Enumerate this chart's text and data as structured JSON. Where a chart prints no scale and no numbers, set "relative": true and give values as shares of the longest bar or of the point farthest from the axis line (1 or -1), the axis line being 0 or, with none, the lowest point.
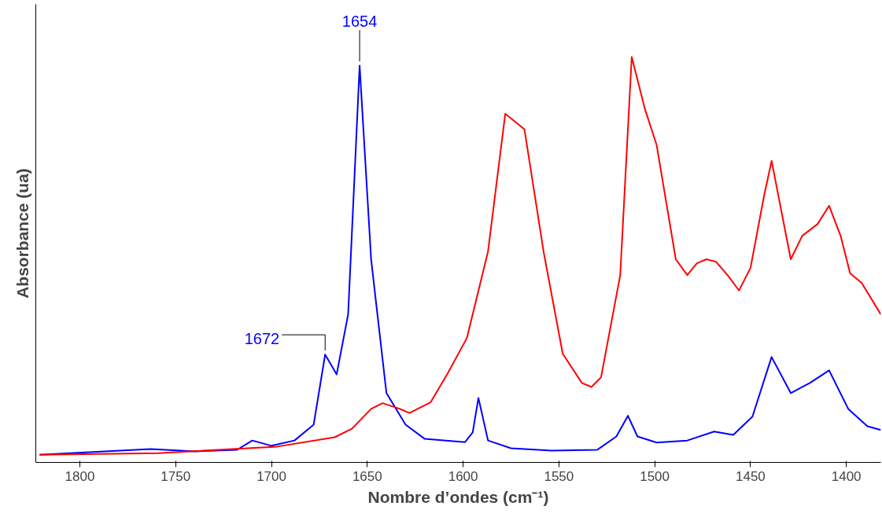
{
  "chart_data": {
    "type": "line",
    "relative": true,
    "xlabel": "Nombre d’ondes (cm⁻¹)",
    "ylabel": "Absorbance (ua)",
    "xlim": [
      1823,
      1382
    ],
    "xticks": [
      1800,
      1750,
      1700,
      1650,
      1600,
      1550,
      1500,
      1450,
      1400
    ],
    "grid": false,
    "marker": "none",
    "line_style": "solid",
    "annotations": [
      {
        "text": "1654",
        "x": 1654,
        "y": 0.979
      },
      {
        "text": "1672",
        "x": 1672,
        "y": 0.266
      }
    ],
    "series": [
      {
        "color": "#0000ff",
        "x": [
          1821,
          1763,
          1740,
          1718,
          1710,
          1700,
          1688,
          1678,
          1672,
          1666,
          1660,
          1654,
          1648,
          1640,
          1630,
          1620,
          1599,
          1595,
          1592,
          1587,
          1575,
          1554,
          1530,
          1520,
          1514,
          1509,
          1499,
          1483,
          1469,
          1459,
          1449,
          1439,
          1429,
          1419,
          1409,
          1399,
          1389,
          1382
        ],
        "values": [
          0.019,
          0.033,
          0.027,
          0.031,
          0.054,
          0.041,
          0.054,
          0.093,
          0.266,
          0.217,
          0.365,
          0.979,
          0.501,
          0.171,
          0.093,
          0.058,
          0.05,
          0.074,
          0.159,
          0.054,
          0.035,
          0.029,
          0.031,
          0.064,
          0.115,
          0.064,
          0.049,
          0.054,
          0.076,
          0.068,
          0.113,
          0.26,
          0.171,
          0.196,
          0.227,
          0.132,
          0.089,
          0.08
        ]
      },
      {
        "color": "#ff0000",
        "x": [
          1821,
          1759,
          1697,
          1667,
          1658,
          1648,
          1642,
          1633,
          1628,
          1617,
          1608,
          1598,
          1587,
          1578,
          1568,
          1558,
          1548,
          1538,
          1533,
          1528,
          1518,
          1512,
          1505,
          1499,
          1489,
          1483,
          1478,
          1473,
          1468,
          1462,
          1456,
          1450,
          1443,
          1439,
          1433,
          1429,
          1423,
          1415,
          1409,
          1403,
          1398,
          1392,
          1382
        ],
        "values": [
          0.019,
          0.023,
          0.039,
          0.062,
          0.083,
          0.132,
          0.146,
          0.132,
          0.122,
          0.148,
          0.22,
          0.307,
          0.52,
          0.86,
          0.822,
          0.52,
          0.268,
          0.196,
          0.186,
          0.21,
          0.462,
          1.0,
          0.87,
          0.783,
          0.501,
          0.462,
          0.491,
          0.501,
          0.495,
          0.462,
          0.424,
          0.48,
          0.656,
          0.744,
          0.598,
          0.501,
          0.559,
          0.588,
          0.633,
          0.559,
          0.466,
          0.443,
          0.365
        ]
      }
    ]
  }
}
